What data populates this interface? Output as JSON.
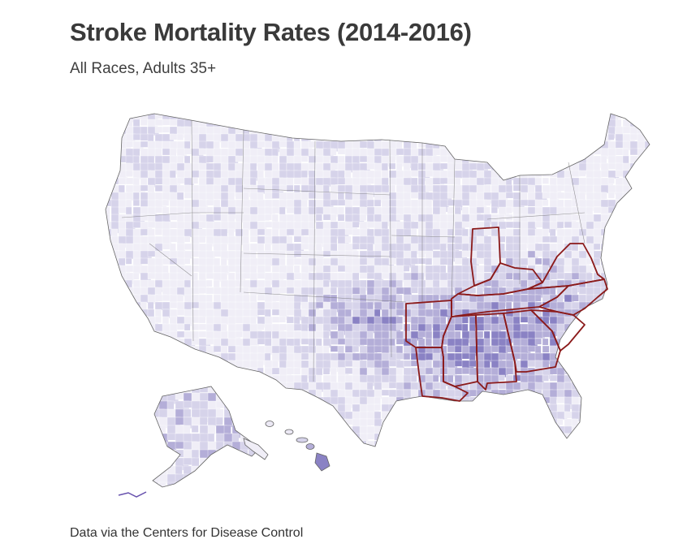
{
  "title": "Stroke Mortality Rates (2014-2016)",
  "subtitle": "All Races, Adults 35+",
  "source": "Data via the Centers for Disease Control",
  "colors": {
    "very_low": "#f0eef7",
    "low": "#d6d3ea",
    "mid": "#b4aed8",
    "high": "#8a82c4",
    "very_high": "#6650ad",
    "highlight_border": "#8b1a1a",
    "county_line": "#ffffff",
    "state_line": "#555555"
  },
  "regions": {
    "alaska": "Alaska",
    "hawaii": "Hawaii",
    "conus": "Contiguous United States",
    "highlighted_states": [
      "Indiana",
      "Kentucky",
      "Virginia",
      "North Carolina",
      "South Carolina",
      "Georgia",
      "Alabama",
      "Mississippi",
      "Tennessee",
      "Arkansas",
      "Louisiana"
    ]
  }
}
